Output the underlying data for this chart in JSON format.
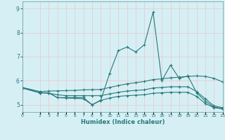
{
  "xlabel": "Humidex (Indice chaleur)",
  "bg_color": "#d6eff5",
  "grid_color": "#c8e8e8",
  "line_color": "#267a7a",
  "xlim": [
    0,
    23
  ],
  "ylim": [
    4.7,
    9.3
  ],
  "yticks": [
    5,
    6,
    7,
    8,
    9
  ],
  "xticks": [
    0,
    2,
    3,
    4,
    5,
    6,
    7,
    8,
    9,
    10,
    11,
    12,
    13,
    14,
    15,
    16,
    17,
    18,
    19,
    20,
    21,
    22,
    23
  ],
  "series": [
    {
      "x": [
        0,
        2,
        3,
        4,
        5,
        6,
        7,
        8,
        9,
        10,
        11,
        12,
        13,
        14,
        15,
        16,
        17,
        18,
        19,
        20,
        21,
        22,
        23
      ],
      "y": [
        5.7,
        5.5,
        5.5,
        5.3,
        5.3,
        5.3,
        5.3,
        5.0,
        5.2,
        6.3,
        7.25,
        7.4,
        7.2,
        7.5,
        8.85,
        6.0,
        6.65,
        6.1,
        6.2,
        5.5,
        5.15,
        4.9,
        4.85
      ]
    },
    {
      "x": [
        0,
        2,
        3,
        4,
        5,
        6,
        7,
        8,
        9,
        10,
        11,
        12,
        13,
        14,
        15,
        16,
        17,
        18,
        19,
        20,
        21,
        22,
        23
      ],
      "y": [
        5.72,
        5.55,
        5.57,
        5.58,
        5.59,
        5.6,
        5.62,
        5.63,
        5.64,
        5.72,
        5.8,
        5.87,
        5.92,
        5.97,
        6.05,
        6.08,
        6.12,
        6.15,
        6.18,
        6.2,
        6.18,
        6.1,
        5.95
      ]
    },
    {
      "x": [
        0,
        2,
        3,
        4,
        5,
        6,
        7,
        8,
        9,
        10,
        11,
        12,
        13,
        14,
        15,
        16,
        17,
        18,
        19,
        20,
        21,
        22,
        23
      ],
      "y": [
        5.7,
        5.5,
        5.48,
        5.42,
        5.38,
        5.38,
        5.38,
        5.38,
        5.38,
        5.45,
        5.52,
        5.57,
        5.6,
        5.62,
        5.7,
        5.72,
        5.75,
        5.75,
        5.75,
        5.55,
        5.25,
        4.95,
        4.88
      ]
    },
    {
      "x": [
        0,
        2,
        3,
        4,
        5,
        6,
        7,
        8,
        9,
        10,
        11,
        12,
        13,
        14,
        15,
        16,
        17,
        18,
        19,
        20,
        21,
        22,
        23
      ],
      "y": [
        5.7,
        5.5,
        5.5,
        5.3,
        5.28,
        5.27,
        5.25,
        5.0,
        5.18,
        5.28,
        5.35,
        5.38,
        5.4,
        5.42,
        5.48,
        5.5,
        5.52,
        5.52,
        5.52,
        5.35,
        5.05,
        4.88,
        4.83
      ]
    }
  ]
}
